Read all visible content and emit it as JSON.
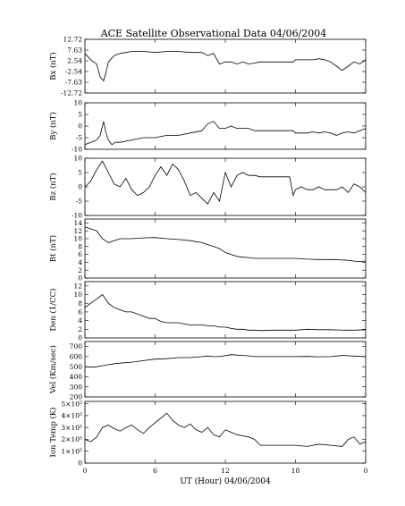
{
  "title": "ACE Satellite Observational Data   04/06/2004",
  "xlabel": "UT (Hour)   04/06/2004",
  "x_ticks": [
    "0",
    "6",
    "12",
    "18",
    "0"
  ],
  "chart_data": [
    {
      "type": "line",
      "ylabel": "Bx (nT)",
      "ylim": [
        -12.72,
        12.72
      ],
      "y_ticks": [
        "12.72",
        "7.63",
        "2.54",
        "-2.54",
        "-7.63",
        "-12.72"
      ],
      "x": [
        0,
        0.5,
        1,
        1.3,
        1.6,
        1.8,
        2,
        2.5,
        3,
        3.5,
        4,
        5,
        6,
        7,
        8,
        9,
        10,
        10.5,
        11,
        11.5,
        12,
        12.5,
        13,
        13.5,
        14,
        14.5,
        15,
        16,
        17,
        17.8,
        18,
        18.5,
        19,
        19.5,
        20,
        20.5,
        21,
        21.5,
        22,
        22.5,
        23,
        23.5,
        24
      ],
      "series": [
        {
          "values": [
            6,
            3,
            1,
            -5,
            -7,
            -3,
            2,
            5,
            6,
            6.5,
            7,
            7,
            6.5,
            7,
            7,
            6.5,
            6.5,
            5,
            6,
            1,
            2,
            2,
            1,
            2,
            1,
            1.5,
            2,
            2,
            2,
            2,
            3,
            3,
            3,
            3,
            3.5,
            3,
            2,
            0,
            -2,
            0,
            2,
            1,
            3
          ]
        }
      ]
    },
    {
      "type": "line",
      "ylabel": "By (nT)",
      "ylim": [
        -10,
        10
      ],
      "y_ticks": [
        "10",
        "5",
        "0",
        "-5",
        "-10"
      ],
      "x": [
        0,
        0.5,
        1,
        1.3,
        1.6,
        1.8,
        2,
        2.3,
        2.6,
        3,
        4,
        5,
        6,
        7,
        8,
        9,
        10,
        10.5,
        11,
        11.5,
        12,
        12.5,
        13,
        13.5,
        14,
        14.5,
        15,
        16,
        17,
        17.8,
        18,
        18.5,
        19,
        19.5,
        20,
        20.5,
        21,
        21.5,
        22,
        22.5,
        23,
        23.5,
        24
      ],
      "series": [
        {
          "values": [
            -8,
            -7,
            -6,
            -4,
            2,
            -3,
            -6,
            -8,
            -7,
            -7,
            -6,
            -5,
            -5,
            -4,
            -4,
            -3,
            -2,
            1,
            2,
            -1,
            -1,
            0,
            -1,
            -1,
            -1,
            -2,
            -2,
            -2,
            -2,
            -2,
            -3,
            -3,
            -3,
            -2.5,
            -3,
            -2.5,
            -3,
            -4,
            -3,
            -2.5,
            -3,
            -2,
            -1
          ]
        }
      ]
    },
    {
      "type": "line",
      "ylabel": "Bz (nT)",
      "ylim": [
        -10,
        10
      ],
      "y_ticks": [
        "10",
        "5",
        "0",
        "-5",
        "-10"
      ],
      "x": [
        0,
        0.5,
        1,
        1.5,
        2,
        2.5,
        3,
        3.5,
        4,
        4.5,
        5,
        5.5,
        6,
        6.5,
        7,
        7.5,
        8,
        8.5,
        9,
        9.5,
        10,
        10.5,
        11,
        11.5,
        12,
        12.5,
        13,
        13.5,
        14,
        14.5,
        15,
        16,
        17,
        17.5,
        17.8,
        18,
        18.5,
        19,
        19.5,
        20,
        20.5,
        21,
        21.5,
        22,
        22.5,
        23,
        23.5,
        24
      ],
      "series": [
        {
          "values": [
            0,
            2,
            6,
            9,
            5,
            1,
            0,
            3,
            -1,
            -3,
            -2,
            0,
            4,
            7,
            4,
            8,
            6,
            2,
            -3,
            -2,
            -4,
            -6,
            -2,
            -5,
            5,
            0,
            4,
            5,
            4,
            4,
            3.5,
            3.5,
            3.5,
            3.5,
            -3,
            -1,
            0,
            -1,
            -1,
            0,
            -1,
            -1,
            -1,
            0,
            -2,
            1,
            0,
            -2
          ]
        }
      ]
    },
    {
      "type": "line",
      "ylabel": "Bt (nT)",
      "ylim": [
        0,
        15
      ],
      "y_ticks": [
        "14",
        "12",
        "10",
        "8",
        "6",
        "4",
        "2",
        "0"
      ],
      "x": [
        0,
        0.5,
        1,
        1.5,
        2,
        2.5,
        3,
        4,
        5,
        6,
        7,
        8,
        9,
        10,
        10.5,
        11,
        11.5,
        12,
        12.5,
        13,
        13.5,
        14,
        14.5,
        15,
        16,
        17,
        18,
        19,
        20,
        21,
        22,
        22.5,
        23,
        23.5,
        24
      ],
      "series": [
        {
          "values": [
            13,
            12.5,
            12,
            10,
            9,
            9.5,
            10,
            10,
            10.2,
            10.3,
            10,
            9.8,
            9.5,
            9,
            8.5,
            8,
            7.5,
            6.5,
            6,
            5.5,
            5.3,
            5.2,
            5,
            5,
            5,
            5,
            5,
            4.8,
            4.7,
            4.7,
            4.6,
            4.5,
            4.3,
            4.2,
            4.3
          ]
        }
      ]
    },
    {
      "type": "line",
      "ylabel": "Den (1/CC)",
      "ylim": [
        0,
        13
      ],
      "y_ticks": [
        "12",
        "10",
        "8",
        "6",
        "4",
        "2",
        "0"
      ],
      "x": [
        0,
        0.5,
        1,
        1.5,
        2,
        2.5,
        3,
        3.5,
        4,
        4.5,
        5,
        5.5,
        6,
        6.5,
        7,
        7.5,
        8,
        9,
        10,
        10.5,
        11,
        11.5,
        12,
        12.5,
        13,
        13.5,
        14,
        14.5,
        15,
        16,
        17,
        18,
        19,
        20,
        21,
        22,
        23,
        24
      ],
      "series": [
        {
          "values": [
            7,
            8,
            9,
            10,
            8,
            7,
            6.5,
            6,
            6,
            5.5,
            5,
            4.5,
            4.5,
            3.8,
            3.5,
            3.5,
            3.5,
            3,
            3,
            2.8,
            2.8,
            2.5,
            2.5,
            2.2,
            2,
            2,
            1.8,
            1.8,
            1.7,
            1.8,
            1.8,
            1.8,
            2,
            1.9,
            1.9,
            1.8,
            1.8,
            1.9
          ]
        }
      ]
    },
    {
      "type": "line",
      "ylabel": "Vel (Km/sec)",
      "ylim": [
        200,
        750
      ],
      "y_ticks": [
        "700",
        "600",
        "500",
        "400",
        "300",
        "200"
      ],
      "x": [
        0,
        0.5,
        1,
        1.5,
        2,
        2.5,
        3,
        4,
        5,
        6,
        7,
        8,
        9,
        10,
        10.5,
        11,
        11.5,
        12,
        12.5,
        13,
        13.5,
        14,
        14.5,
        15,
        16,
        17,
        18,
        19,
        20,
        21,
        22,
        23,
        24
      ],
      "series": [
        {
          "values": [
            500,
            495,
            500,
            510,
            520,
            530,
            535,
            545,
            560,
            575,
            580,
            590,
            590,
            600,
            605,
            600,
            600,
            610,
            620,
            615,
            612,
            608,
            600,
            600,
            600,
            600,
            600,
            602,
            598,
            600,
            612,
            605,
            600
          ]
        }
      ]
    },
    {
      "type": "line",
      "ylabel": "Ion Temp (K)",
      "ylim": [
        0,
        520000
      ],
      "y_ticks": [
        "5×10⁵",
        "4×10⁵",
        "3×10⁵",
        "2×10⁵",
        "1×10⁵",
        "0"
      ],
      "x": [
        0,
        0.5,
        1,
        1.5,
        2,
        2.5,
        3,
        3.5,
        4,
        4.5,
        5,
        5.5,
        6,
        6.5,
        7,
        7.5,
        8,
        8.5,
        9,
        9.5,
        10,
        10.5,
        11,
        11.5,
        12,
        12.5,
        13,
        13.5,
        14,
        14.5,
        15,
        16,
        17,
        18,
        19,
        20,
        21,
        22,
        22.5,
        23,
        23.5,
        24
      ],
      "series": [
        {
          "values": [
            200000,
            180000,
            220000,
            300000,
            320000,
            290000,
            270000,
            300000,
            320000,
            280000,
            250000,
            300000,
            340000,
            380000,
            420000,
            360000,
            320000,
            300000,
            330000,
            280000,
            260000,
            300000,
            240000,
            220000,
            280000,
            260000,
            240000,
            230000,
            220000,
            200000,
            150000,
            150000,
            150000,
            150000,
            140000,
            160000,
            150000,
            140000,
            200000,
            220000,
            160000,
            180000
          ]
        }
      ]
    }
  ]
}
